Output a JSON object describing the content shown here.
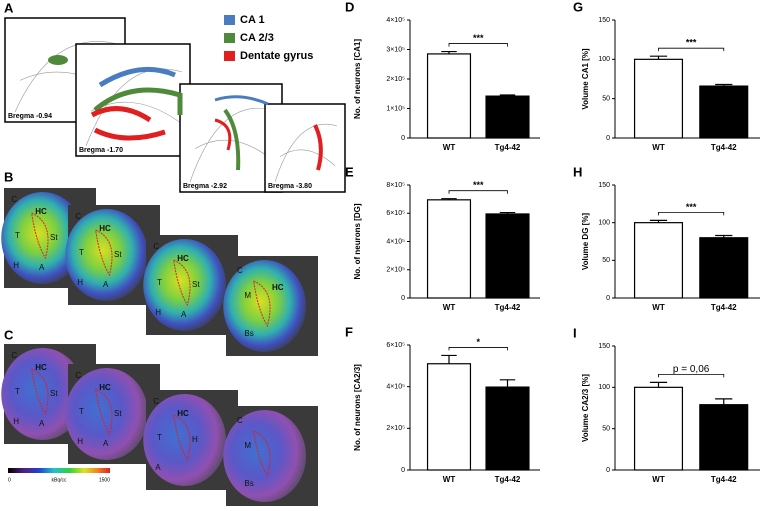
{
  "panel_a": {
    "label": "A",
    "legend": [
      {
        "name": "CA 1",
        "color": "#4a7cc0"
      },
      {
        "name": "CA 2/3",
        "color": "#4f8a3a"
      },
      {
        "name": "Dentate gyrus",
        "color": "#e02020"
      }
    ],
    "sections": [
      "Bregma -0.94",
      "Bregma -1.70",
      "Bregma -2.92",
      "Bregma -3.80"
    ]
  },
  "panel_b": {
    "label": "B",
    "slices": [
      [
        "C",
        "HC",
        "T",
        "St",
        "H",
        "A"
      ],
      [
        "C",
        "HC",
        "T",
        "St",
        "H",
        "A"
      ],
      [
        "C",
        "HC",
        "T",
        "St",
        "H",
        "A"
      ],
      [
        "C",
        "M",
        "HC",
        "Bs"
      ]
    ]
  },
  "panel_c": {
    "label": "C",
    "slices": [
      [
        "C",
        "HC",
        "T",
        "St",
        "H",
        "A"
      ],
      [
        "C",
        "HC",
        "T",
        "St",
        "H",
        "A"
      ],
      [
        "C",
        "HC",
        "T",
        "H",
        "A"
      ],
      [
        "C",
        "M",
        "Bs"
      ]
    ]
  },
  "colorbar": {
    "min": "0",
    "unit": "kBq/cc",
    "max": "1500"
  },
  "chart_data": [
    {
      "type": "bar",
      "panel": "D",
      "ylabel": "No. of neurons [CA1]",
      "categories": [
        "WT",
        "Tg4-42"
      ],
      "values": [
        285000,
        142000
      ],
      "errors": [
        8000,
        4000
      ],
      "colors": [
        "#ffffff",
        "#000000"
      ],
      "ylim": [
        0,
        400000
      ],
      "yticks": [
        0,
        {
          "value": 100000,
          "label": "1×10⁵"
        },
        {
          "value": 200000,
          "label": "2×10⁵"
        },
        {
          "value": 300000,
          "label": "3×10⁵"
        },
        {
          "value": 400000,
          "label": "4×10⁵"
        }
      ],
      "significance": "***"
    },
    {
      "type": "bar",
      "panel": "G",
      "ylabel": "Volume CA1 [%]",
      "categories": [
        "WT",
        "Tg4-42"
      ],
      "values": [
        100,
        66
      ],
      "errors": [
        4,
        2
      ],
      "colors": [
        "#ffffff",
        "#000000"
      ],
      "ylim": [
        0,
        150
      ],
      "yticks": [
        0,
        50,
        100,
        150
      ],
      "significance": "***"
    },
    {
      "type": "bar",
      "panel": "E",
      "ylabel": "No. of neurons  [DG]",
      "categories": [
        "WT",
        "Tg4-42"
      ],
      "values": [
        695000,
        595000
      ],
      "errors": [
        8000,
        10000
      ],
      "colors": [
        "#ffffff",
        "#000000"
      ],
      "ylim": [
        0,
        800000
      ],
      "yticks": [
        0,
        {
          "value": 200000,
          "label": "2×10⁵"
        },
        {
          "value": 400000,
          "label": "4×10⁵"
        },
        {
          "value": 600000,
          "label": "6×10⁵"
        },
        {
          "value": 800000,
          "label": "8×10⁵"
        }
      ],
      "significance": "***"
    },
    {
      "type": "bar",
      "panel": "H",
      "ylabel": "Volume DG [%]",
      "categories": [
        "WT",
        "Tg4-42"
      ],
      "values": [
        100,
        80
      ],
      "errors": [
        3,
        3
      ],
      "colors": [
        "#ffffff",
        "#000000"
      ],
      "ylim": [
        0,
        150
      ],
      "yticks": [
        0,
        50,
        100,
        150
      ],
      "significance": "***"
    },
    {
      "type": "bar",
      "panel": "F",
      "ylabel": "No. of neurons [CA2/3]",
      "categories": [
        "WT",
        "Tg4-42"
      ],
      "values": [
        510000,
        398000
      ],
      "errors": [
        40000,
        35000
      ],
      "colors": [
        "#ffffff",
        "#000000"
      ],
      "ylim": [
        0,
        600000
      ],
      "yticks": [
        0,
        {
          "value": 200000,
          "label": "2×10⁵"
        },
        {
          "value": 400000,
          "label": "4×10⁵"
        },
        {
          "value": 600000,
          "label": "6×10⁵"
        }
      ],
      "significance": "*"
    },
    {
      "type": "bar",
      "panel": "I",
      "ylabel": "Volume CA2/3 [%]",
      "categories": [
        "WT",
        "Tg4-42"
      ],
      "values": [
        100,
        79
      ],
      "errors": [
        6,
        7
      ],
      "colors": [
        "#ffffff",
        "#000000"
      ],
      "ylim": [
        0,
        150
      ],
      "yticks": [
        0,
        50,
        100,
        150
      ],
      "significance": "p = 0,06"
    }
  ]
}
